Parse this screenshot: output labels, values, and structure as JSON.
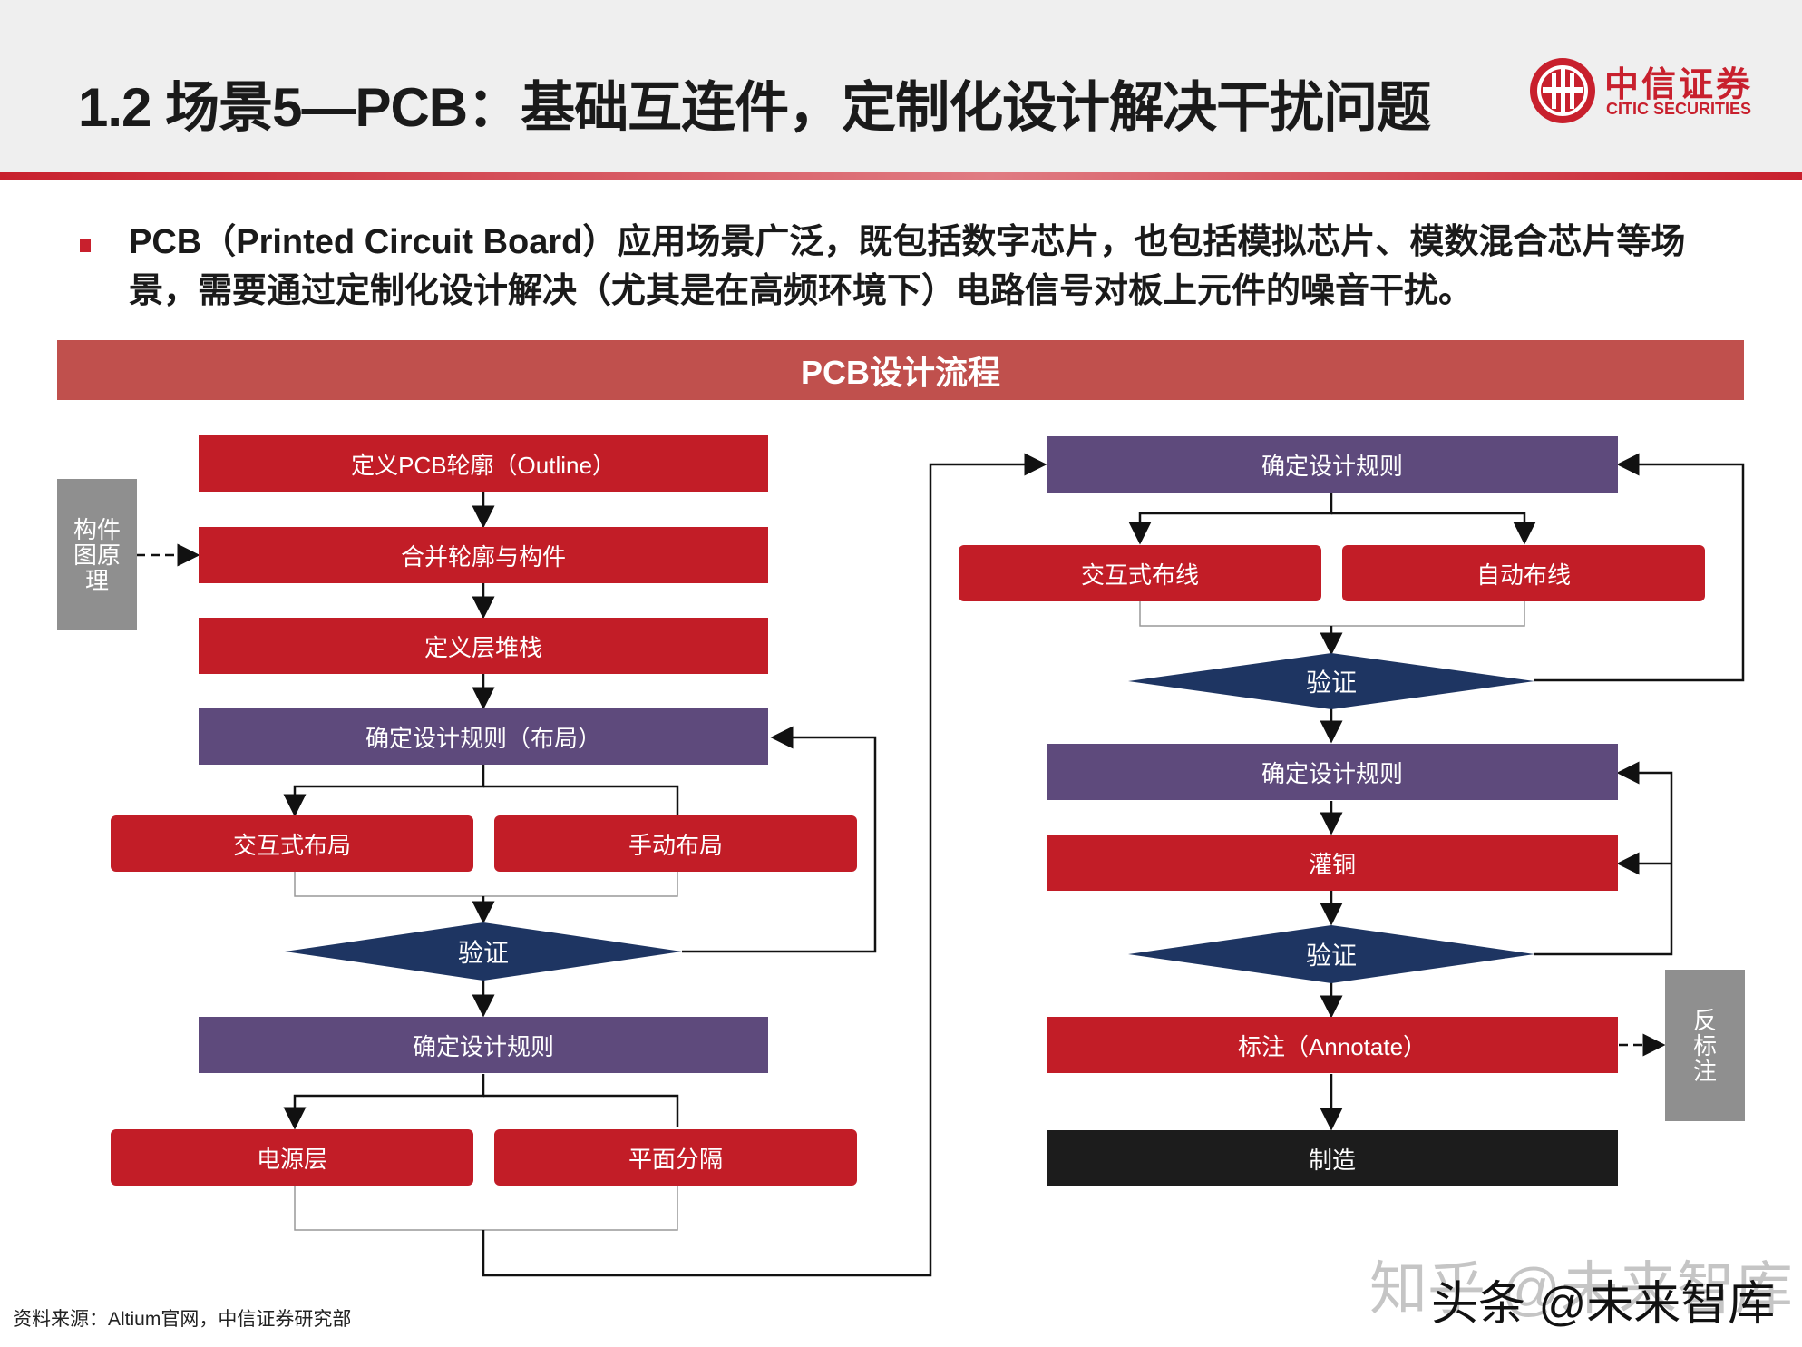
{
  "header": {
    "title": "1.2 场景5—PCB：基础互连件，定制化设计解决干扰问题",
    "logo_cn": "中信证券",
    "logo_en": "CITIC SECURITIES"
  },
  "intro": "PCB（Printed Circuit Board）应用场景广泛，既包括数字芯片，也包括模拟芯片、模数混合芯片等场景，需要通过定制化设计解决（尤其是在高频环境下）电路信号对板上元件的噪音干扰。",
  "band_title": "PCB设计流程",
  "colors": {
    "red": "#c21d27",
    "purple": "#5e4a7c",
    "navy": "#1e3562",
    "gray": "#8f8f8f",
    "black": "#1c1c1c"
  },
  "left_flow": {
    "define_outline": "定义PCB轮廓（Outline）",
    "merge": "合并轮廓与构件",
    "layer_stack": "定义层堆栈",
    "rules_layout": "确定设计规则（布局）",
    "interactive_layout": "交互式布局",
    "manual_layout": "手动布局",
    "verify": "验证",
    "rules": "确定设计规则",
    "power_layer": "电源层",
    "plane_split": "平面分隔",
    "side_label": "构件图原理"
  },
  "right_flow": {
    "rules_top": "确定设计规则",
    "interactive_routing": "交互式布线",
    "auto_routing": "自动布线",
    "verify_1": "验证",
    "rules_mid": "确定设计规则",
    "copper_pour": "灌铜",
    "verify_2": "验证",
    "annotate": "标注（Annotate）",
    "manufacture": "制造",
    "side_label": "反标注"
  },
  "footer": {
    "source": "资料来源：Altium官网，中信证券研究部",
    "watermark_1": "知乎 @未来智库",
    "watermark_2": "头条 @未来智库"
  }
}
